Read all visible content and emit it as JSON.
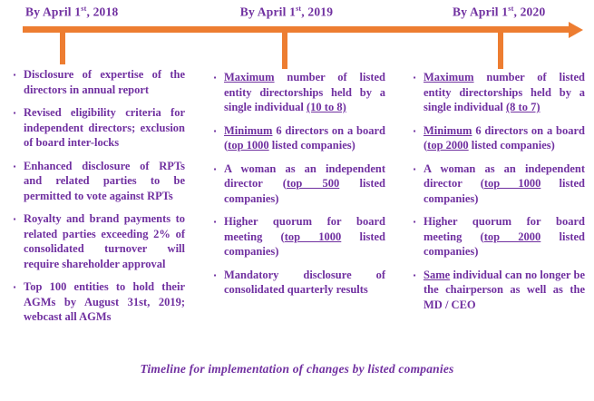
{
  "colors": {
    "text_purple": "#7030A0",
    "arrow_orange": "#ED7D31"
  },
  "timeline": {
    "milestones": [
      {
        "name": "2018",
        "segments": [
          {
            "t": "By April 1"
          },
          {
            "t": "st",
            "sup": true
          },
          {
            "t": ", 2018"
          }
        ]
      },
      {
        "name": "2019",
        "segments": [
          {
            "t": "By April 1"
          },
          {
            "t": "st",
            "sup": true
          },
          {
            "t": ", 2019"
          }
        ]
      },
      {
        "name": "2020",
        "segments": [
          {
            "t": "By April 1"
          },
          {
            "t": "st",
            "sup": true
          },
          {
            "t": ", 2020"
          }
        ]
      }
    ]
  },
  "columns": [
    {
      "milestone": "By April 1st, 2018",
      "bullets": [
        {
          "segments": [
            {
              "t": "Disclosure of expertise of the directors in annual report"
            }
          ]
        },
        {
          "segments": [
            {
              "t": "Revised eligibility criteria for independent directors; exclusion of board inter-locks"
            }
          ]
        },
        {
          "segments": [
            {
              "t": "Enhanced disclosure of RPTs and related parties to be permitted to vote against RPTs"
            }
          ]
        },
        {
          "segments": [
            {
              "t": "Royalty and brand payments to related parties exceeding 2% of consolidated turnover will require shareholder approval"
            }
          ]
        },
        {
          "segments": [
            {
              "t": "Top 100 entities to hold their AGMs by August 31st, 2019; webcast all AGMs"
            }
          ]
        }
      ]
    },
    {
      "milestone": "By April 1st, 2019",
      "bullets": [
        {
          "segments": [
            {
              "t": "Maximum",
              "u": true
            },
            {
              "t": " number of listed entity directorships held by a single individual "
            },
            {
              "t": "(10 to 8)",
              "u": true
            }
          ]
        },
        {
          "segments": [
            {
              "t": "Minimum",
              "u": true
            },
            {
              "t": " 6 directors on a board ("
            },
            {
              "t": "top 1000",
              "u": true
            },
            {
              "t": " listed companies)"
            }
          ]
        },
        {
          "segments": [
            {
              "t": "A woman as an independent director ("
            },
            {
              "t": "top 500",
              "u": true
            },
            {
              "t": " listed companies)"
            }
          ]
        },
        {
          "segments": [
            {
              "t": "Higher quorum for board meeting ("
            },
            {
              "t": "top 1000",
              "u": true
            },
            {
              "t": " listed companies)"
            }
          ]
        },
        {
          "segments": [
            {
              "t": "Mandatory disclosure of consolidated quarterly results"
            }
          ]
        }
      ]
    },
    {
      "milestone": "By April 1st, 2020",
      "bullets": [
        {
          "segments": [
            {
              "t": "Maximum",
              "u": true
            },
            {
              "t": " number of listed entity directorships held by a single individual "
            },
            {
              "t": "(8 to 7)",
              "u": true
            }
          ]
        },
        {
          "segments": [
            {
              "t": "Minimum",
              "u": true
            },
            {
              "t": " 6 directors on a board ("
            },
            {
              "t": "top 2000",
              "u": true
            },
            {
              "t": " listed companies)"
            }
          ]
        },
        {
          "segments": [
            {
              "t": "A woman as an independent director ("
            },
            {
              "t": "top 1000",
              "u": true
            },
            {
              "t": " listed companies)"
            }
          ]
        },
        {
          "segments": [
            {
              "t": "Higher quorum for board meeting ("
            },
            {
              "t": "top 2000",
              "u": true
            },
            {
              "t": " listed companies)"
            }
          ]
        },
        {
          "segments": [
            {
              "t": "Same",
              "u": true
            },
            {
              "t": " individual can no longer be the chairperson as well as the MD / CEO"
            }
          ]
        }
      ]
    }
  ],
  "caption": "Timeline for implementation of  changes by listed companies",
  "bullet_glyph": "▪"
}
